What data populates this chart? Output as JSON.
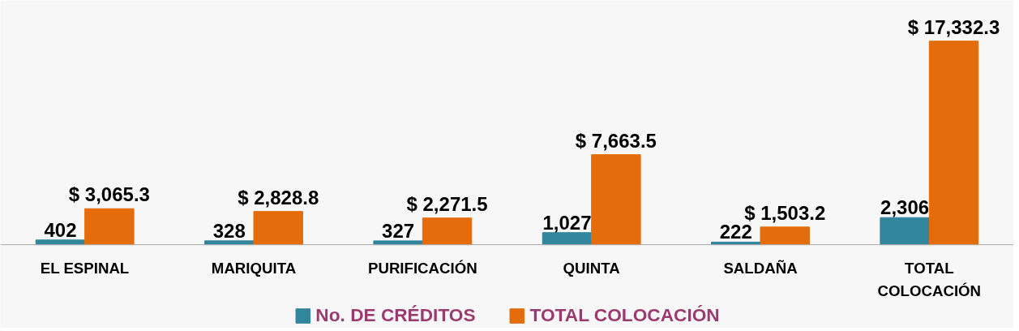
{
  "chart_data": {
    "type": "bar",
    "categories": [
      "EL ESPINAL",
      "MARIQUITA",
      "PURIFICACIÓN",
      "QUINTA",
      "SALDAÑA",
      "TOTAL COLOCACIÓN"
    ],
    "series": [
      {
        "name": "No. DE CRÉDITOS",
        "color": "#31859c",
        "values": [
          402,
          328,
          327,
          1027,
          222,
          2306
        ],
        "value_labels": [
          "402",
          "328",
          "327",
          "1,027",
          "222",
          "2,306"
        ]
      },
      {
        "name": "TOTAL COLOCACIÓN",
        "color": "#e46c0a",
        "values": [
          3065.3,
          2828.8,
          2271.5,
          7663.5,
          1503.2,
          17332.3
        ],
        "value_labels": [
          "$ 3,065.3",
          "$ 2,828.8",
          "$ 2,271.5",
          "$ 7,663.5",
          "$ 1,503.2",
          "$ 17,332.3"
        ]
      }
    ],
    "legend": "bottom"
  }
}
